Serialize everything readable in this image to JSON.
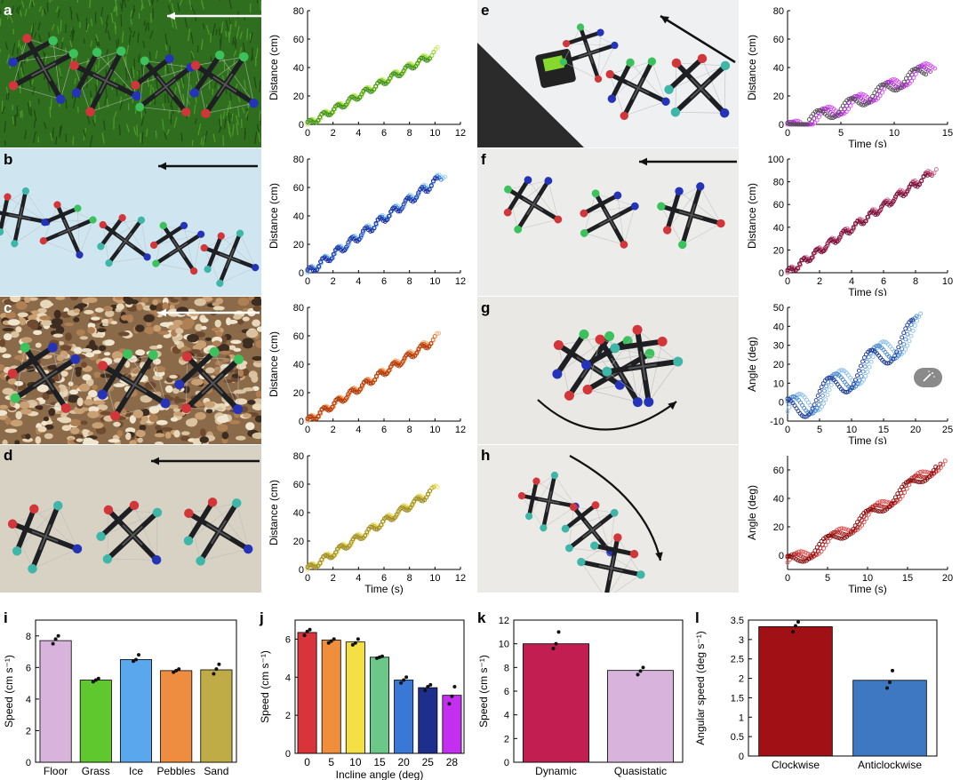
{
  "panels": {
    "a": "a",
    "b": "b",
    "c": "c",
    "d": "d",
    "e": "e",
    "f": "f",
    "g": "g",
    "h": "h",
    "i": "i",
    "j": "j",
    "k": "k",
    "l": "l"
  },
  "colors": {
    "grass": "#2f6e1e",
    "ice": "#cfe6f0",
    "pebbles": "#8a6a48",
    "sand": "#d8d2c4",
    "incline_bg": "#eef0f2",
    "floor_bg": "#e9e8e4",
    "node_red": "#d2363a",
    "node_green": "#3cc25c",
    "node_blue": "#2433b8",
    "node_cyan": "#3fb7a8",
    "strut": "#1e1f22"
  },
  "chart_data": [
    {
      "id": "a",
      "type": "scatter",
      "xlabel": "",
      "ylabel": "Distance (cm)",
      "xlim": [
        0,
        12
      ],
      "ylim": [
        0,
        80
      ],
      "xticks": [
        0,
        2,
        4,
        6,
        8,
        10,
        12
      ],
      "yticks": [
        0,
        20,
        40,
        60,
        80
      ],
      "t_end": 10.2,
      "y_end": 52,
      "amp": 2.2,
      "period": 1.1,
      "series_colors": [
        "#c6ec52",
        "#8ad13e",
        "#3d8c22"
      ]
    },
    {
      "id": "b",
      "type": "scatter",
      "xlabel": "",
      "ylabel": "Distance (cm)",
      "xlim": [
        0,
        12
      ],
      "ylim": [
        0,
        80
      ],
      "xticks": [
        0,
        2,
        4,
        6,
        8,
        10,
        12
      ],
      "yticks": [
        0,
        20,
        40,
        60,
        80
      ],
      "t_end": 10.8,
      "y_end": 70,
      "amp": 2.8,
      "period": 1.1,
      "series_colors": [
        "#8ed3f2",
        "#3b71d6",
        "#1a2a9c"
      ]
    },
    {
      "id": "c",
      "type": "scatter",
      "xlabel": "",
      "ylabel": "Distance (cm)",
      "xlim": [
        0,
        12
      ],
      "ylim": [
        0,
        80
      ],
      "xticks": [
        0,
        2,
        4,
        6,
        8,
        10,
        12
      ],
      "yticks": [
        0,
        20,
        40,
        60,
        80
      ],
      "t_end": 10.3,
      "y_end": 60,
      "amp": 2.4,
      "period": 1.1,
      "series_colors": [
        "#f6b07a",
        "#e2661e",
        "#a8360c"
      ]
    },
    {
      "id": "d",
      "type": "scatter",
      "xlabel": "Time (s)",
      "ylabel": "Distance (cm)",
      "xlim": [
        0,
        12
      ],
      "ylim": [
        0,
        80
      ],
      "xticks": [
        0,
        2,
        4,
        6,
        8,
        10,
        12
      ],
      "yticks": [
        0,
        20,
        40,
        60,
        80
      ],
      "t_end": 10.2,
      "y_end": 58,
      "amp": 2.4,
      "period": 1.2,
      "series_colors": [
        "#ede36a",
        "#c9b53c",
        "#9c8a2a"
      ]
    },
    {
      "id": "e",
      "type": "scatter",
      "xlabel": "Time (s)",
      "ylabel": "Distance (cm)",
      "xlim": [
        0,
        15
      ],
      "ylim": [
        0,
        80
      ],
      "xticks": [
        0,
        5,
        10,
        15
      ],
      "yticks": [
        0,
        20,
        40,
        60,
        80
      ],
      "t_end": 13.8,
      "y_end": 42,
      "amp": 4.5,
      "period": 3.0,
      "series_colors": [
        "#d44df0",
        "#a12fc6",
        "#555057"
      ]
    },
    {
      "id": "f",
      "type": "scatter",
      "xlabel": "Time (s)",
      "ylabel": "Distance (cm)",
      "xlim": [
        0,
        10
      ],
      "ylim": [
        0,
        100
      ],
      "xticks": [
        0,
        2,
        4,
        6,
        8,
        10
      ],
      "yticks": [
        0,
        20,
        40,
        60,
        80,
        100
      ],
      "t_end": 9.3,
      "y_end": 92,
      "amp": 3.0,
      "period": 0.85,
      "series_colors": [
        "#d07090",
        "#a82a56",
        "#6e1038"
      ]
    },
    {
      "id": "g",
      "type": "scatter",
      "xlabel": "Time (s)",
      "ylabel": "Angle (deg)",
      "xlim": [
        0,
        25
      ],
      "ylim": [
        -10,
        50
      ],
      "xticks": [
        0,
        5,
        10,
        15,
        20,
        25
      ],
      "yticks": [
        -10,
        0,
        10,
        20,
        30,
        40,
        50
      ],
      "t_end": 20.8,
      "y_end": 40,
      "amp": 7,
      "period": 6.5,
      "series_colors": [
        "#8cc0ea",
        "#4a88d0",
        "#1c3a96"
      ]
    },
    {
      "id": "h",
      "type": "scatter",
      "xlabel": "Time (s)",
      "ylabel": "Angle (deg)",
      "xlim": [
        0,
        20
      ],
      "ylim": [
        -10,
        70
      ],
      "xticks": [
        0,
        5,
        10,
        15,
        20
      ],
      "yticks": [
        0,
        20,
        40,
        60
      ],
      "t_end": 19.7,
      "y_end": 68,
      "amp": 4.5,
      "period": 5.0,
      "series_colors": [
        "#d85050",
        "#b42222",
        "#800a0a"
      ]
    },
    {
      "id": "i",
      "type": "bar",
      "ylabel": "Speed (cm s⁻¹)",
      "xlabel": "",
      "ylim": [
        0,
        9
      ],
      "yticks": [
        0,
        2,
        4,
        6,
        8
      ],
      "categories": [
        "Floor",
        "Grass",
        "Ice",
        "Pebbles",
        "Sand"
      ],
      "values": [
        7.7,
        5.2,
        6.5,
        5.8,
        5.85
      ],
      "colors": [
        "#d8b4dc",
        "#5ec82e",
        "#5aa7ee",
        "#ee8c40",
        "#c0ac46"
      ],
      "points": [
        [
          7.5,
          7.8,
          8.0
        ],
        [
          5.1,
          5.2,
          5.3
        ],
        [
          6.4,
          6.5,
          6.8
        ],
        [
          5.7,
          5.8,
          5.9
        ],
        [
          5.6,
          5.9,
          6.2
        ]
      ]
    },
    {
      "id": "j",
      "type": "bar",
      "ylabel": "Speed (cm s⁻¹)",
      "xlabel": "Incline angle (deg)",
      "ylim": [
        0,
        7
      ],
      "yticks": [
        0,
        2,
        4,
        6
      ],
      "categories": [
        "0",
        "5",
        "10",
        "15",
        "20",
        "25",
        "28"
      ],
      "values": [
        6.35,
        5.95,
        5.85,
        5.05,
        3.85,
        3.45,
        3.05
      ],
      "colors": [
        "#d8343a",
        "#f08e3c",
        "#f4e044",
        "#6cc888",
        "#3a78d8",
        "#1e2e8c",
        "#c42ef0"
      ],
      "points": [
        [
          6.2,
          6.4,
          6.5
        ],
        [
          5.8,
          5.9,
          6.0
        ],
        [
          5.7,
          5.8,
          6.0
        ],
        [
          5.0,
          5.05,
          5.1
        ],
        [
          3.7,
          3.85,
          4.0
        ],
        [
          3.3,
          3.5,
          3.6
        ],
        [
          2.6,
          3.0,
          3.5
        ]
      ]
    },
    {
      "id": "k",
      "type": "bar",
      "ylabel": "Speed (cm s⁻¹)",
      "xlabel": "",
      "ylim": [
        0,
        12
      ],
      "yticks": [
        0,
        2,
        4,
        6,
        8,
        10,
        12
      ],
      "categories": [
        "Dynamic",
        "Quasistatic"
      ],
      "values": [
        10.0,
        7.75
      ],
      "colors": [
        "#c21e52",
        "#d8b4dc"
      ],
      "points": [
        [
          9.6,
          10.0,
          11.0
        ],
        [
          7.4,
          7.7,
          8.0
        ]
      ]
    },
    {
      "id": "l",
      "type": "bar",
      "ylabel": "Angular speed (deg s⁻¹)",
      "xlabel": "",
      "ylim": [
        0,
        3.5
      ],
      "yticks": [
        0,
        0.5,
        1,
        1.5,
        2,
        2.5,
        3,
        3.5
      ],
      "ytick_labels": [
        "0",
        "0.5",
        "1",
        "1.5",
        "2",
        "2.5",
        "3",
        "3.5"
      ],
      "categories": [
        "Clockwise",
        "Anticlockwise"
      ],
      "values": [
        3.33,
        1.95
      ],
      "colors": [
        "#a01014",
        "#3e78c2"
      ],
      "points": [
        [
          3.2,
          3.35,
          3.45
        ],
        [
          1.75,
          1.9,
          2.2
        ]
      ]
    }
  ]
}
